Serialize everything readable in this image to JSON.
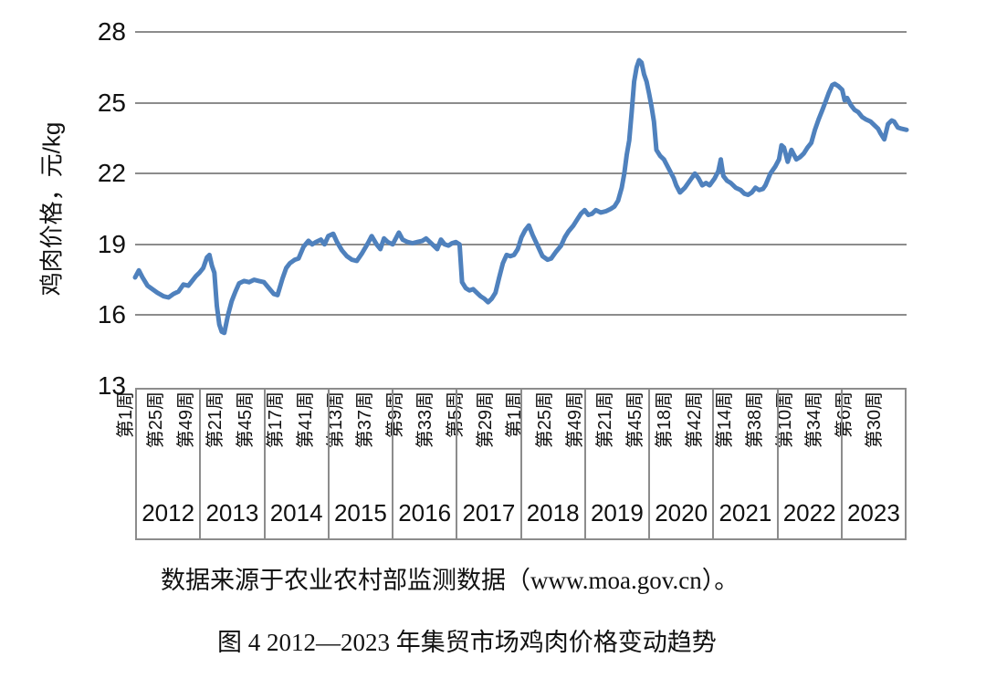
{
  "figure": {
    "caption": "数据来源于农业农村部监测数据（www.moa.gov.cn）。",
    "title": "图 4 2012—2023 年集贸市场鸡肉价格变动趋势"
  },
  "chart_data": {
    "type": "line",
    "title": "",
    "xlabel": "",
    "ylabel": "鸡肉价格，元/kg",
    "unit": "元/kg",
    "ylim": [
      13,
      28
    ],
    "y_ticks": [
      28,
      25,
      22,
      19,
      16,
      13
    ],
    "grid": true,
    "legend": false,
    "x_week_labels": [
      "第1周",
      "第25周",
      "第49周",
      "第21周",
      "第45周",
      "第17周",
      "第41周",
      "第13周",
      "第37周",
      "第9周",
      "第33周",
      "第5周",
      "第29周",
      "第1周",
      "第25周",
      "第49周",
      "第21周",
      "第45周",
      "第18周",
      "第42周",
      "第14周",
      "第38周",
      "第10周",
      "第34周",
      "第6周",
      "第30周"
    ],
    "years": [
      "2012",
      "2013",
      "2014",
      "2015",
      "2016",
      "2017",
      "2018",
      "2019",
      "2020",
      "2021",
      "2022",
      "2023"
    ],
    "weeks_per_year": 52,
    "x_total_weeks": 624,
    "line_color": "#4f81bd",
    "gridline_color": "#8c8c8c",
    "series": [
      {
        "name": "集贸市场鸡肉价格",
        "color": "#4f81bd",
        "points": [
          [
            0,
            17.6
          ],
          [
            3,
            17.9
          ],
          [
            6,
            17.6
          ],
          [
            10,
            17.25
          ],
          [
            14,
            17.1
          ],
          [
            18,
            16.95
          ],
          [
            23,
            16.8
          ],
          [
            27,
            16.75
          ],
          [
            31,
            16.9
          ],
          [
            35,
            17.0
          ],
          [
            39,
            17.3
          ],
          [
            43,
            17.25
          ],
          [
            46,
            17.45
          ],
          [
            49,
            17.65
          ],
          [
            52,
            17.8
          ],
          [
            55,
            18.0
          ],
          [
            58,
            18.45
          ],
          [
            60,
            18.55
          ],
          [
            62,
            18.1
          ],
          [
            64,
            17.8
          ],
          [
            66,
            16.4
          ],
          [
            68,
            15.6
          ],
          [
            70,
            15.3
          ],
          [
            72,
            15.25
          ],
          [
            75,
            16.0
          ],
          [
            78,
            16.6
          ],
          [
            81,
            17.0
          ],
          [
            84,
            17.35
          ],
          [
            88,
            17.45
          ],
          [
            92,
            17.4
          ],
          [
            96,
            17.5
          ],
          [
            100,
            17.45
          ],
          [
            104,
            17.4
          ],
          [
            108,
            17.15
          ],
          [
            112,
            16.9
          ],
          [
            115,
            16.85
          ],
          [
            119,
            17.55
          ],
          [
            122,
            18.0
          ],
          [
            125,
            18.2
          ],
          [
            129,
            18.35
          ],
          [
            132,
            18.4
          ],
          [
            136,
            18.9
          ],
          [
            140,
            19.15
          ],
          [
            143,
            19.0
          ],
          [
            146,
            19.1
          ],
          [
            150,
            19.2
          ],
          [
            153,
            19.0
          ],
          [
            156,
            19.35
          ],
          [
            160,
            19.45
          ],
          [
            163,
            19.1
          ],
          [
            167,
            18.75
          ],
          [
            171,
            18.5
          ],
          [
            175,
            18.35
          ],
          [
            179,
            18.3
          ],
          [
            183,
            18.6
          ],
          [
            188,
            19.05
          ],
          [
            191,
            19.35
          ],
          [
            195,
            19.0
          ],
          [
            198,
            18.8
          ],
          [
            201,
            19.25
          ],
          [
            204,
            19.1
          ],
          [
            208,
            19.0
          ],
          [
            211,
            19.3
          ],
          [
            213,
            19.5
          ],
          [
            216,
            19.2
          ],
          [
            220,
            19.1
          ],
          [
            224,
            19.05
          ],
          [
            228,
            19.1
          ],
          [
            232,
            19.15
          ],
          [
            235,
            19.25
          ],
          [
            238,
            19.1
          ],
          [
            241,
            18.95
          ],
          [
            244,
            18.8
          ],
          [
            247,
            19.2
          ],
          [
            250,
            19.0
          ],
          [
            253,
            18.95
          ],
          [
            256,
            19.05
          ],
          [
            259,
            19.1
          ],
          [
            262,
            19.0
          ],
          [
            264,
            17.4
          ],
          [
            267,
            17.15
          ],
          [
            270,
            17.05
          ],
          [
            273,
            17.1
          ],
          [
            276,
            16.95
          ],
          [
            279,
            16.8
          ],
          [
            282,
            16.7
          ],
          [
            285,
            16.55
          ],
          [
            288,
            16.7
          ],
          [
            291,
            16.95
          ],
          [
            294,
            17.6
          ],
          [
            297,
            18.2
          ],
          [
            300,
            18.55
          ],
          [
            303,
            18.5
          ],
          [
            306,
            18.55
          ],
          [
            309,
            18.8
          ],
          [
            312,
            19.3
          ],
          [
            315,
            19.6
          ],
          [
            318,
            19.8
          ],
          [
            321,
            19.4
          ],
          [
            325,
            18.95
          ],
          [
            329,
            18.5
          ],
          [
            333,
            18.35
          ],
          [
            336,
            18.4
          ],
          [
            340,
            18.7
          ],
          [
            344,
            18.95
          ],
          [
            347,
            19.3
          ],
          [
            350,
            19.55
          ],
          [
            354,
            19.8
          ],
          [
            357,
            20.05
          ],
          [
            360,
            20.3
          ],
          [
            363,
            20.45
          ],
          [
            366,
            20.25
          ],
          [
            369,
            20.3
          ],
          [
            372,
            20.45
          ],
          [
            376,
            20.35
          ],
          [
            380,
            20.4
          ],
          [
            384,
            20.5
          ],
          [
            387,
            20.6
          ],
          [
            390,
            20.85
          ],
          [
            393,
            21.4
          ],
          [
            395,
            22.0
          ],
          [
            397,
            22.8
          ],
          [
            399,
            23.4
          ],
          [
            401,
            24.6
          ],
          [
            403,
            25.9
          ],
          [
            405,
            26.5
          ],
          [
            407,
            26.8
          ],
          [
            409,
            26.7
          ],
          [
            411,
            26.2
          ],
          [
            413,
            25.9
          ],
          [
            415,
            25.4
          ],
          [
            417,
            24.85
          ],
          [
            419,
            24.2
          ],
          [
            421,
            23.0
          ],
          [
            424,
            22.75
          ],
          [
            427,
            22.6
          ],
          [
            429,
            22.4
          ],
          [
            431,
            22.2
          ],
          [
            435,
            21.8
          ],
          [
            437,
            21.5
          ],
          [
            440,
            21.2
          ],
          [
            444,
            21.4
          ],
          [
            448,
            21.7
          ],
          [
            452,
            22.0
          ],
          [
            455,
            21.8
          ],
          [
            458,
            21.5
          ],
          [
            461,
            21.6
          ],
          [
            464,
            21.5
          ],
          [
            468,
            21.8
          ],
          [
            471,
            22.1
          ],
          [
            473,
            22.6
          ],
          [
            475,
            21.9
          ],
          [
            478,
            21.7
          ],
          [
            481,
            21.6
          ],
          [
            485,
            21.4
          ],
          [
            489,
            21.3
          ],
          [
            492,
            21.15
          ],
          [
            495,
            21.1
          ],
          [
            498,
            21.2
          ],
          [
            501,
            21.4
          ],
          [
            504,
            21.3
          ],
          [
            507,
            21.35
          ],
          [
            509,
            21.5
          ],
          [
            513,
            22.0
          ],
          [
            517,
            22.3
          ],
          [
            520,
            22.6
          ],
          [
            522,
            23.2
          ],
          [
            524,
            23.1
          ],
          [
            527,
            22.5
          ],
          [
            530,
            23.0
          ],
          [
            532,
            22.8
          ],
          [
            534,
            22.6
          ],
          [
            537,
            22.7
          ],
          [
            540,
            22.85
          ],
          [
            543,
            23.1
          ],
          [
            546,
            23.3
          ],
          [
            549,
            23.85
          ],
          [
            552,
            24.3
          ],
          [
            555,
            24.7
          ],
          [
            558,
            25.1
          ],
          [
            560,
            25.4
          ],
          [
            563,
            25.75
          ],
          [
            565,
            25.8
          ],
          [
            568,
            25.7
          ],
          [
            571,
            25.55
          ],
          [
            573,
            25.1
          ],
          [
            575,
            25.2
          ],
          [
            578,
            24.9
          ],
          [
            581,
            24.7
          ],
          [
            584,
            24.6
          ],
          [
            587,
            24.4
          ],
          [
            590,
            24.3
          ],
          [
            594,
            24.2
          ],
          [
            597,
            24.05
          ],
          [
            600,
            23.9
          ],
          [
            602,
            23.7
          ],
          [
            605,
            23.45
          ],
          [
            608,
            24.1
          ],
          [
            611,
            24.25
          ],
          [
            613,
            24.2
          ],
          [
            616,
            23.95
          ],
          [
            619,
            23.9
          ],
          [
            623,
            23.85
          ]
        ]
      }
    ]
  }
}
